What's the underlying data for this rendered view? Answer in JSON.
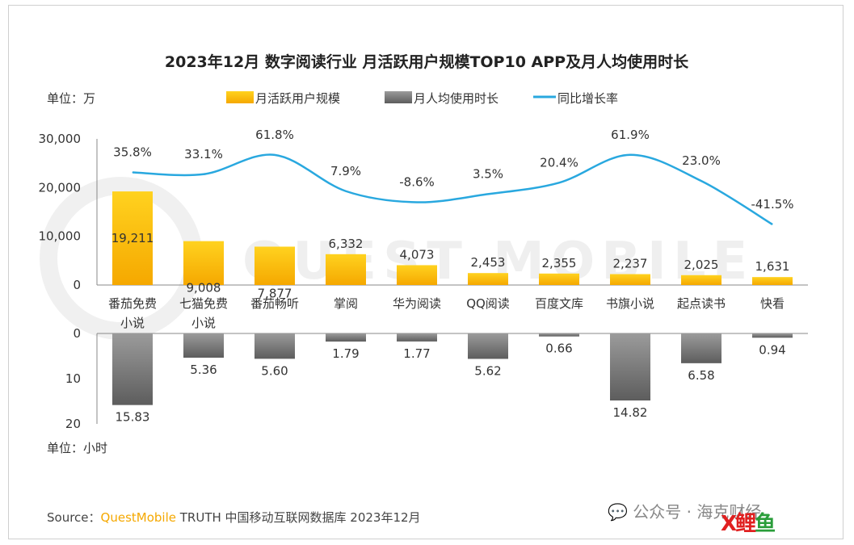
{
  "chart_data": {
    "type": "bar",
    "title": "2023年12月 数字阅读行业 月活跃用户规模TOP10 APP及月人均使用时长",
    "unit_top": "单位：万",
    "unit_bottom": "单位：小时",
    "legend": [
      "月活跃用户规模",
      "月人均使用时长",
      "同比增长率"
    ],
    "categories": [
      [
        "番茄免费",
        "小说"
      ],
      [
        "七猫免费",
        "小说"
      ],
      [
        "番茄畅听"
      ],
      [
        "掌阅"
      ],
      [
        "华为阅读"
      ],
      [
        "QQ阅读"
      ],
      [
        "百度文库"
      ],
      [
        "书旗小说"
      ],
      [
        "起点读书"
      ],
      [
        "快看"
      ]
    ],
    "series": [
      {
        "name": "月活跃用户规模",
        "values": [
          19211,
          9008,
          7877,
          6332,
          4073,
          2453,
          2355,
          2237,
          2025,
          1631
        ],
        "labels": [
          "19,211",
          "9,008",
          "7,877",
          "6,332",
          "4,073",
          "2,453",
          "2,355",
          "2,237",
          "2,025",
          "1,631"
        ]
      },
      {
        "name": "月人均使用时长",
        "values": [
          15.83,
          5.36,
          5.6,
          1.79,
          1.77,
          5.62,
          0.66,
          14.82,
          6.58,
          0.94
        ],
        "labels": [
          "15.83",
          "5.36",
          "5.60",
          "1.79",
          "1.77",
          "5.62",
          "0.66",
          "14.82",
          "6.58",
          "0.94"
        ]
      },
      {
        "name": "同比增长率",
        "values": [
          35.8,
          33.1,
          61.8,
          7.9,
          -8.6,
          3.5,
          20.4,
          61.9,
          23.0,
          -41.5
        ],
        "labels": [
          "35.8%",
          "33.1%",
          "61.8%",
          "7.9%",
          "-8.6%",
          "3.5%",
          "20.4%",
          "61.9%",
          "23.0%",
          "-41.5%"
        ]
      }
    ],
    "ylim_top": [
      0,
      30000
    ],
    "yticks_top": [
      "0",
      "10,000",
      "20,000",
      "30,000"
    ],
    "ylim_bottom": [
      0,
      20
    ],
    "yticks_bottom": [
      "0",
      "10",
      "20"
    ],
    "growth_axis_range": [
      -50,
      70
    ],
    "colors": {
      "mau": "#ffc107",
      "mau_dark": "#f5a800",
      "time": "#8a8a8a",
      "time_dark": "#5a5a5a",
      "growth": "#29a8df"
    }
  },
  "source": {
    "label": "Source：",
    "brand": "QuestMobile",
    "text": " TRUTH 中国移动互联网数据库 2023年12月"
  },
  "watermark": {
    "text": "公众号 · 海克财经"
  },
  "logo": {
    "part1": "X",
    "part2": "鲤",
    "part3": "鱼"
  }
}
